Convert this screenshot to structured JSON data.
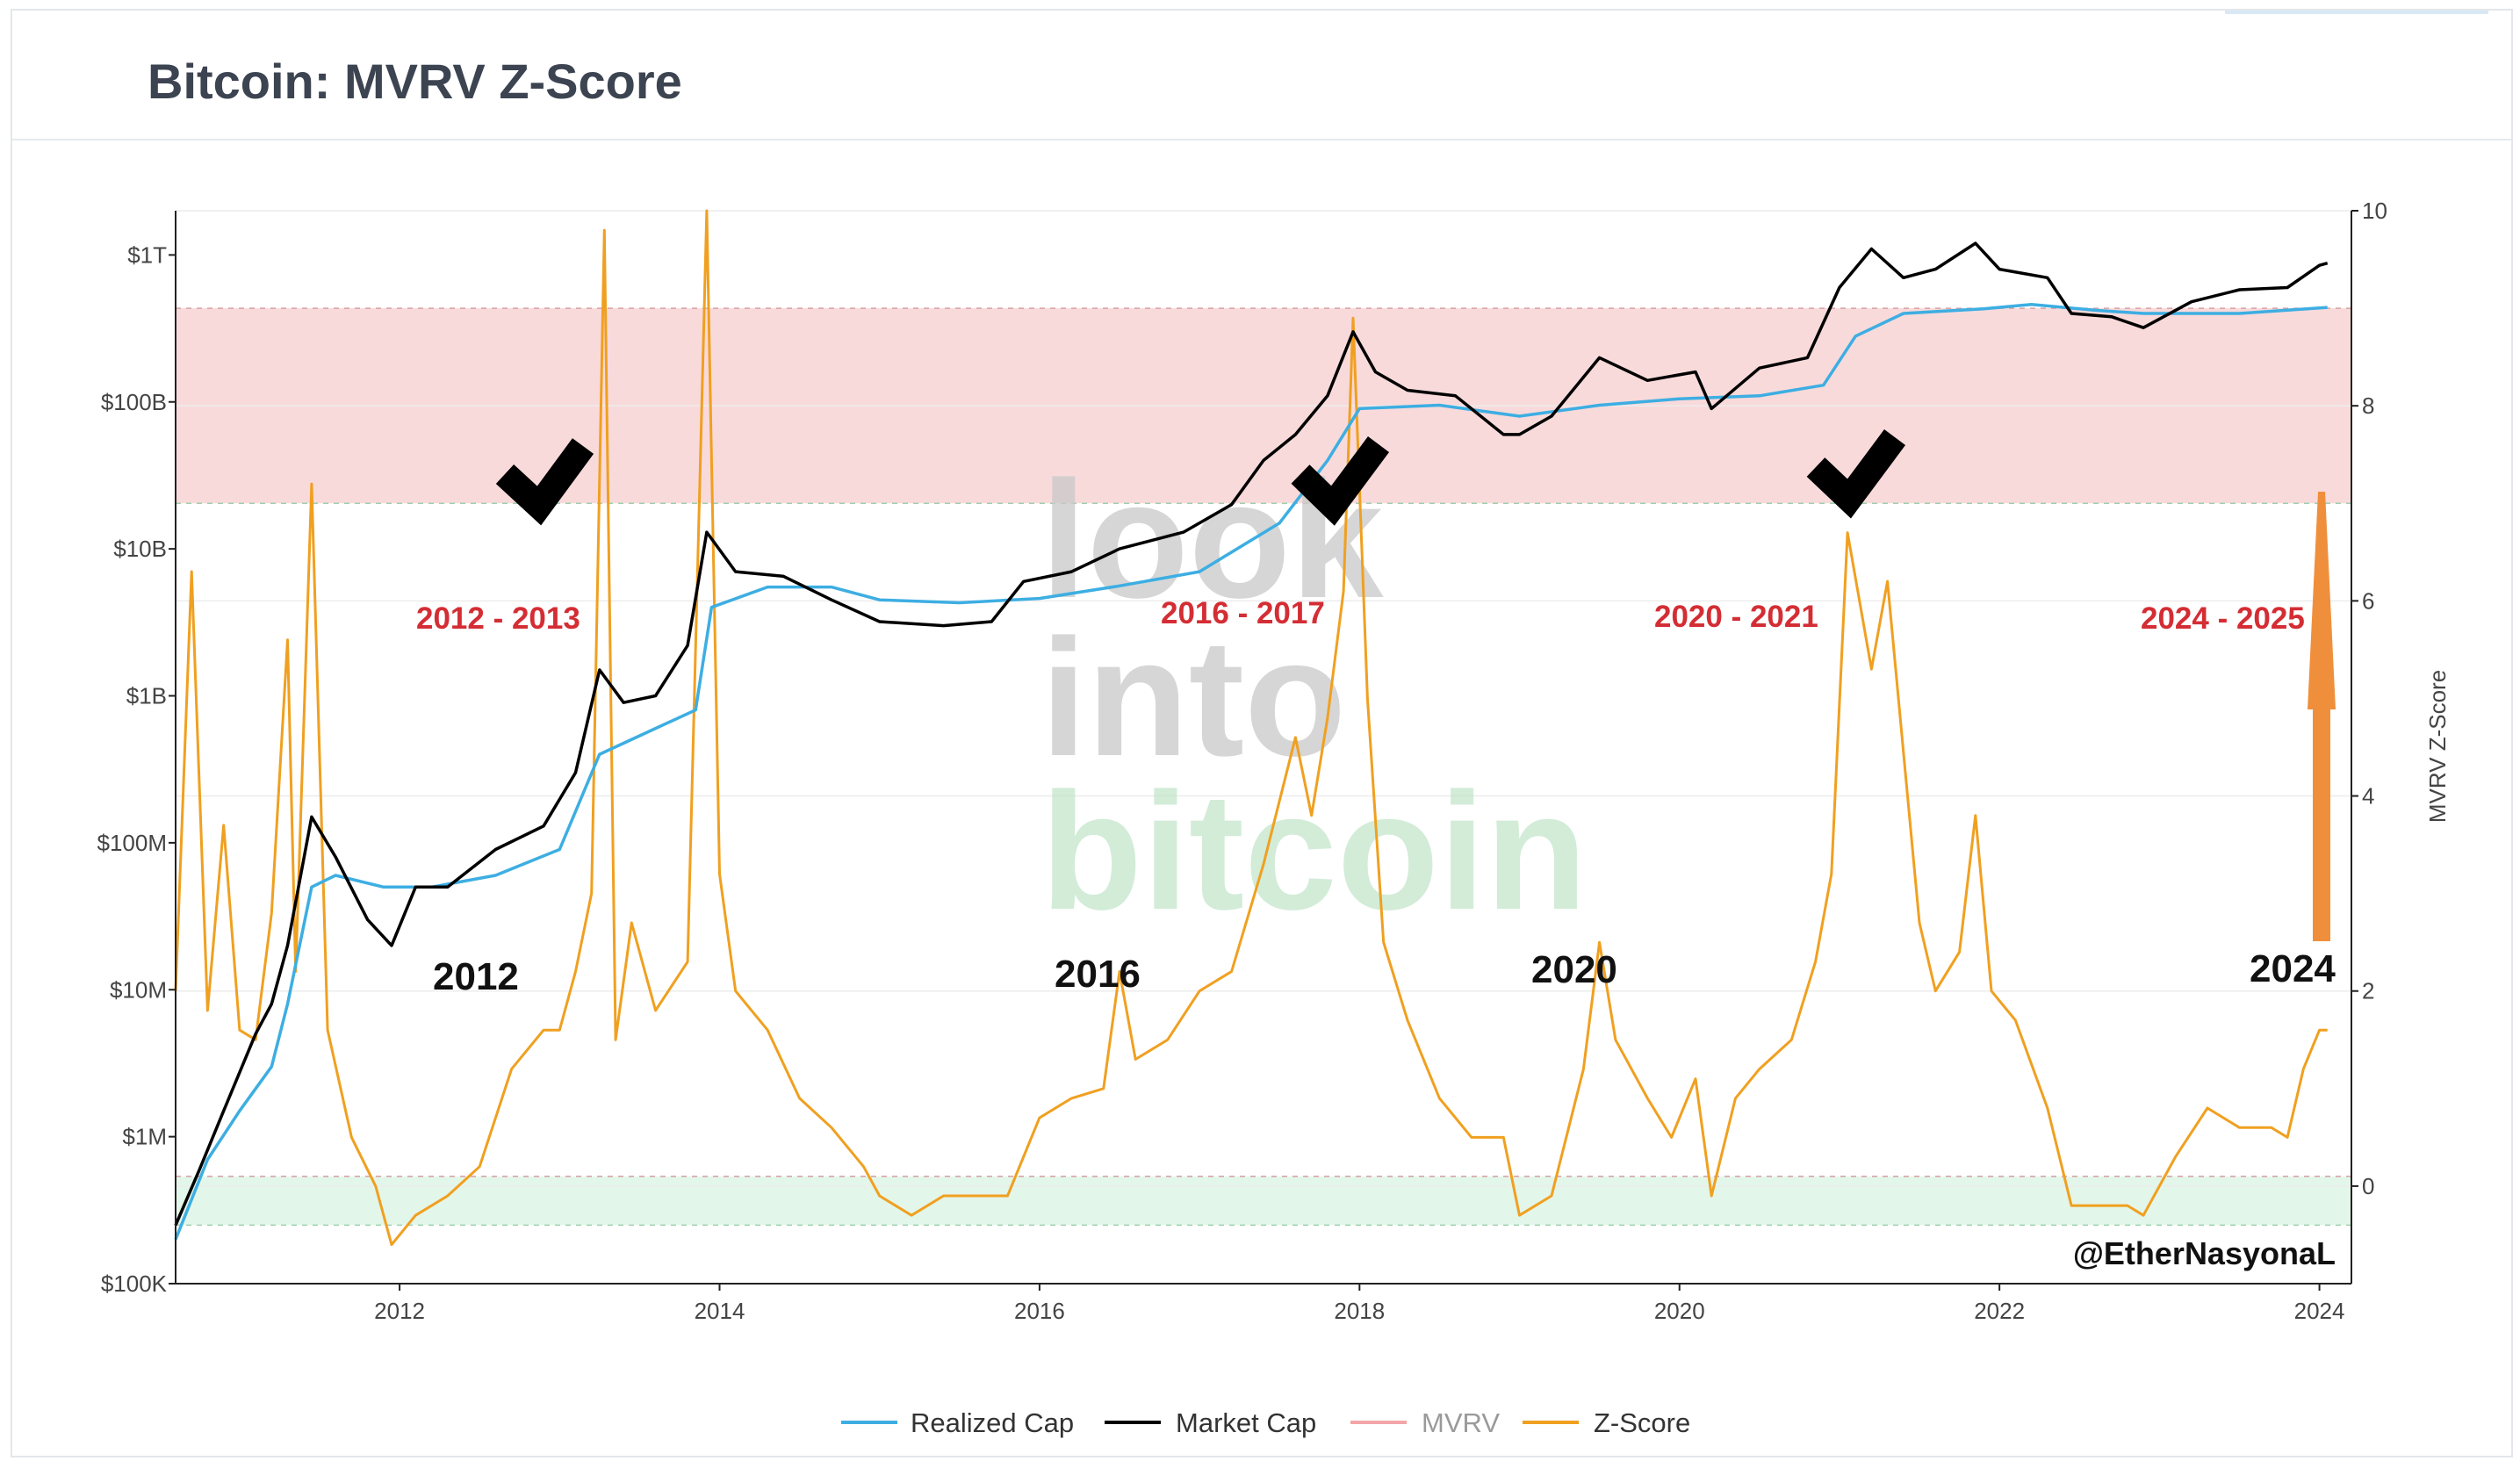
{
  "page": {
    "title": "Bitcoin: MVRV Z-Score"
  },
  "chart_data": {
    "type": "line",
    "title": "Bitcoin: MVRV Z-Score",
    "x_ticks": [
      "2012",
      "2014",
      "2016",
      "2018",
      "2020",
      "2022",
      "2024"
    ],
    "x_range": [
      2010.6,
      2024.2
    ],
    "y_left": {
      "scale": "log",
      "range": [
        100000,
        2000000000000
      ],
      "ticks": [
        {
          "value": 100000,
          "label": "$100K"
        },
        {
          "value": 1000000,
          "label": "$1M"
        },
        {
          "value": 10000000,
          "label": "$10M"
        },
        {
          "value": 100000000,
          "label": "$100M"
        },
        {
          "value": 1000000000,
          "label": "$1B"
        },
        {
          "value": 10000000000,
          "label": "$10B"
        },
        {
          "value": 100000000000,
          "label": "$100B"
        },
        {
          "value": 1000000000000,
          "label": "$1T"
        }
      ]
    },
    "y_right": {
      "label": "MVRV Z-Score",
      "range": [
        -1,
        10
      ],
      "ticks": [
        0,
        2,
        4,
        6,
        8,
        10
      ]
    },
    "bands": [
      {
        "name": "top-zone",
        "z_range": [
          7,
          9
        ],
        "color": "#f9dadb"
      },
      {
        "name": "bottom-zone",
        "z_range": [
          -0.4,
          0.1
        ],
        "color": "#e3f6ea"
      }
    ],
    "series": [
      {
        "name": "Z-Score",
        "color": "#f0a020",
        "points": [
          [
            2010.6,
            2.0
          ],
          [
            2010.7,
            6.3
          ],
          [
            2010.8,
            1.8
          ],
          [
            2010.9,
            3.7
          ],
          [
            2011.0,
            1.6
          ],
          [
            2011.1,
            1.5
          ],
          [
            2011.2,
            2.8
          ],
          [
            2011.3,
            5.6
          ],
          [
            2011.35,
            2.2
          ],
          [
            2011.45,
            7.2
          ],
          [
            2011.55,
            1.6
          ],
          [
            2011.7,
            0.5
          ],
          [
            2011.85,
            0.0
          ],
          [
            2011.95,
            -0.6
          ],
          [
            2012.1,
            -0.3
          ],
          [
            2012.3,
            -0.1
          ],
          [
            2012.5,
            0.2
          ],
          [
            2012.7,
            1.2
          ],
          [
            2012.9,
            1.6
          ],
          [
            2013.0,
            1.6
          ],
          [
            2013.1,
            2.2
          ],
          [
            2013.2,
            3.0
          ],
          [
            2013.28,
            9.8
          ],
          [
            2013.35,
            1.5
          ],
          [
            2013.45,
            2.7
          ],
          [
            2013.6,
            1.8
          ],
          [
            2013.8,
            2.3
          ],
          [
            2013.92,
            10.0
          ],
          [
            2014.0,
            3.2
          ],
          [
            2014.1,
            2.0
          ],
          [
            2014.3,
            1.6
          ],
          [
            2014.5,
            0.9
          ],
          [
            2014.7,
            0.6
          ],
          [
            2014.9,
            0.2
          ],
          [
            2015.0,
            -0.1
          ],
          [
            2015.2,
            -0.3
          ],
          [
            2015.4,
            -0.1
          ],
          [
            2015.6,
            -0.1
          ],
          [
            2015.8,
            -0.1
          ],
          [
            2016.0,
            0.7
          ],
          [
            2016.2,
            0.9
          ],
          [
            2016.4,
            1.0
          ],
          [
            2016.5,
            2.2
          ],
          [
            2016.6,
            1.3
          ],
          [
            2016.8,
            1.5
          ],
          [
            2017.0,
            2.0
          ],
          [
            2017.2,
            2.2
          ],
          [
            2017.4,
            3.3
          ],
          [
            2017.6,
            4.6
          ],
          [
            2017.7,
            3.8
          ],
          [
            2017.8,
            4.8
          ],
          [
            2017.9,
            6.1
          ],
          [
            2017.96,
            8.9
          ],
          [
            2018.05,
            5.0
          ],
          [
            2018.15,
            2.5
          ],
          [
            2018.3,
            1.7
          ],
          [
            2018.5,
            0.9
          ],
          [
            2018.7,
            0.5
          ],
          [
            2018.9,
            0.5
          ],
          [
            2019.0,
            -0.3
          ],
          [
            2019.2,
            -0.1
          ],
          [
            2019.4,
            1.2
          ],
          [
            2019.5,
            2.5
          ],
          [
            2019.6,
            1.5
          ],
          [
            2019.8,
            0.9
          ],
          [
            2019.95,
            0.5
          ],
          [
            2020.1,
            1.1
          ],
          [
            2020.2,
            -0.1
          ],
          [
            2020.35,
            0.9
          ],
          [
            2020.5,
            1.2
          ],
          [
            2020.7,
            1.5
          ],
          [
            2020.85,
            2.3
          ],
          [
            2020.95,
            3.2
          ],
          [
            2021.05,
            6.7
          ],
          [
            2021.2,
            5.3
          ],
          [
            2021.3,
            6.2
          ],
          [
            2021.5,
            2.7
          ],
          [
            2021.6,
            2.0
          ],
          [
            2021.75,
            2.4
          ],
          [
            2021.85,
            3.8
          ],
          [
            2021.95,
            2.0
          ],
          [
            2022.1,
            1.7
          ],
          [
            2022.3,
            0.8
          ],
          [
            2022.45,
            -0.2
          ],
          [
            2022.6,
            -0.2
          ],
          [
            2022.8,
            -0.2
          ],
          [
            2022.9,
            -0.3
          ],
          [
            2023.1,
            0.3
          ],
          [
            2023.3,
            0.8
          ],
          [
            2023.5,
            0.6
          ],
          [
            2023.7,
            0.6
          ],
          [
            2023.8,
            0.5
          ],
          [
            2023.9,
            1.2
          ],
          [
            2024.0,
            1.6
          ],
          [
            2024.05,
            1.6
          ]
        ]
      },
      {
        "name": "Market Cap",
        "color": "#000000",
        "points": [
          [
            2010.6,
            250000
          ],
          [
            2010.75,
            600000
          ],
          [
            2010.9,
            1500000
          ],
          [
            2011.1,
            5000000
          ],
          [
            2011.2,
            8000000
          ],
          [
            2011.3,
            20000000
          ],
          [
            2011.45,
            150000000
          ],
          [
            2011.6,
            80000000
          ],
          [
            2011.8,
            30000000
          ],
          [
            2011.95,
            20000000
          ],
          [
            2012.1,
            50000000
          ],
          [
            2012.3,
            50000000
          ],
          [
            2012.6,
            90000000
          ],
          [
            2012.9,
            130000000
          ],
          [
            2013.1,
            300000000
          ],
          [
            2013.25,
            1500000000
          ],
          [
            2013.4,
            900000000
          ],
          [
            2013.6,
            1000000000
          ],
          [
            2013.8,
            2200000000
          ],
          [
            2013.92,
            13000000000
          ],
          [
            2014.1,
            7000000000
          ],
          [
            2014.4,
            6500000000
          ],
          [
            2014.7,
            4500000000
          ],
          [
            2015.0,
            3200000000
          ],
          [
            2015.4,
            3000000000
          ],
          [
            2015.7,
            3200000000
          ],
          [
            2015.9,
            6000000000
          ],
          [
            2016.2,
            7000000000
          ],
          [
            2016.5,
            10000000000
          ],
          [
            2016.9,
            13000000000
          ],
          [
            2017.2,
            20000000000
          ],
          [
            2017.4,
            40000000000
          ],
          [
            2017.6,
            60000000000
          ],
          [
            2017.8,
            110000000000
          ],
          [
            2017.96,
            300000000000
          ],
          [
            2018.1,
            160000000000
          ],
          [
            2018.3,
            120000000000
          ],
          [
            2018.6,
            110000000000
          ],
          [
            2018.9,
            60000000000
          ],
          [
            2019.0,
            60000000000
          ],
          [
            2019.2,
            80000000000
          ],
          [
            2019.5,
            200000000000
          ],
          [
            2019.8,
            140000000000
          ],
          [
            2020.1,
            160000000000
          ],
          [
            2020.2,
            90000000000
          ],
          [
            2020.5,
            170000000000
          ],
          [
            2020.8,
            200000000000
          ],
          [
            2021.0,
            600000000000
          ],
          [
            2021.2,
            1100000000000
          ],
          [
            2021.4,
            700000000000
          ],
          [
            2021.6,
            800000000000
          ],
          [
            2021.85,
            1200000000000
          ],
          [
            2022.0,
            800000000000
          ],
          [
            2022.3,
            700000000000
          ],
          [
            2022.45,
            400000000000
          ],
          [
            2022.7,
            380000000000
          ],
          [
            2022.9,
            320000000000
          ],
          [
            2023.2,
            480000000000
          ],
          [
            2023.5,
            580000000000
          ],
          [
            2023.8,
            600000000000
          ],
          [
            2024.0,
            850000000000
          ],
          [
            2024.05,
            880000000000
          ]
        ]
      },
      {
        "name": "Realized Cap",
        "color": "#3daee2",
        "points": [
          [
            2010.6,
            200000
          ],
          [
            2010.8,
            700000
          ],
          [
            2011.0,
            1500000
          ],
          [
            2011.2,
            3000000
          ],
          [
            2011.3,
            8000000
          ],
          [
            2011.45,
            50000000
          ],
          [
            2011.6,
            60000000
          ],
          [
            2011.9,
            50000000
          ],
          [
            2012.2,
            50000000
          ],
          [
            2012.6,
            60000000
          ],
          [
            2013.0,
            90000000
          ],
          [
            2013.25,
            400000000
          ],
          [
            2013.6,
            600000000
          ],
          [
            2013.85,
            800000000
          ],
          [
            2013.95,
            4000000000
          ],
          [
            2014.3,
            5500000000
          ],
          [
            2014.7,
            5500000000
          ],
          [
            2015.0,
            4500000000
          ],
          [
            2015.5,
            4300000000
          ],
          [
            2016.0,
            4600000000
          ],
          [
            2016.5,
            5600000000
          ],
          [
            2017.0,
            7000000000
          ],
          [
            2017.5,
            15000000000
          ],
          [
            2017.8,
            40000000000
          ],
          [
            2018.0,
            90000000000
          ],
          [
            2018.5,
            95000000000
          ],
          [
            2019.0,
            80000000000
          ],
          [
            2019.5,
            95000000000
          ],
          [
            2020.0,
            105000000000
          ],
          [
            2020.5,
            110000000000
          ],
          [
            2020.9,
            130000000000
          ],
          [
            2021.1,
            280000000000
          ],
          [
            2021.4,
            400000000000
          ],
          [
            2021.9,
            430000000000
          ],
          [
            2022.2,
            460000000000
          ],
          [
            2022.6,
            420000000000
          ],
          [
            2022.9,
            400000000000
          ],
          [
            2023.5,
            400000000000
          ],
          [
            2024.05,
            440000000000
          ]
        ]
      }
    ],
    "legend": [
      "Realized Cap",
      "Market Cap",
      "MVRV",
      "Z-Score"
    ],
    "legend_colors": [
      "#3daee2",
      "#000000",
      "#f4a5a7",
      "#f0a020"
    ],
    "era_labels": [
      "2012 - 2013",
      "2016 - 2017",
      "2020 - 2021",
      "2024 - 2025"
    ],
    "year_labels": [
      "2012",
      "2016",
      "2020",
      "2024"
    ],
    "watermark": [
      "look",
      "into",
      "bitcoin"
    ],
    "signature": "@EtherNasyonaL",
    "checkmark_colors": {
      "check": "#000000",
      "arrow": "#ef8f3c"
    }
  }
}
